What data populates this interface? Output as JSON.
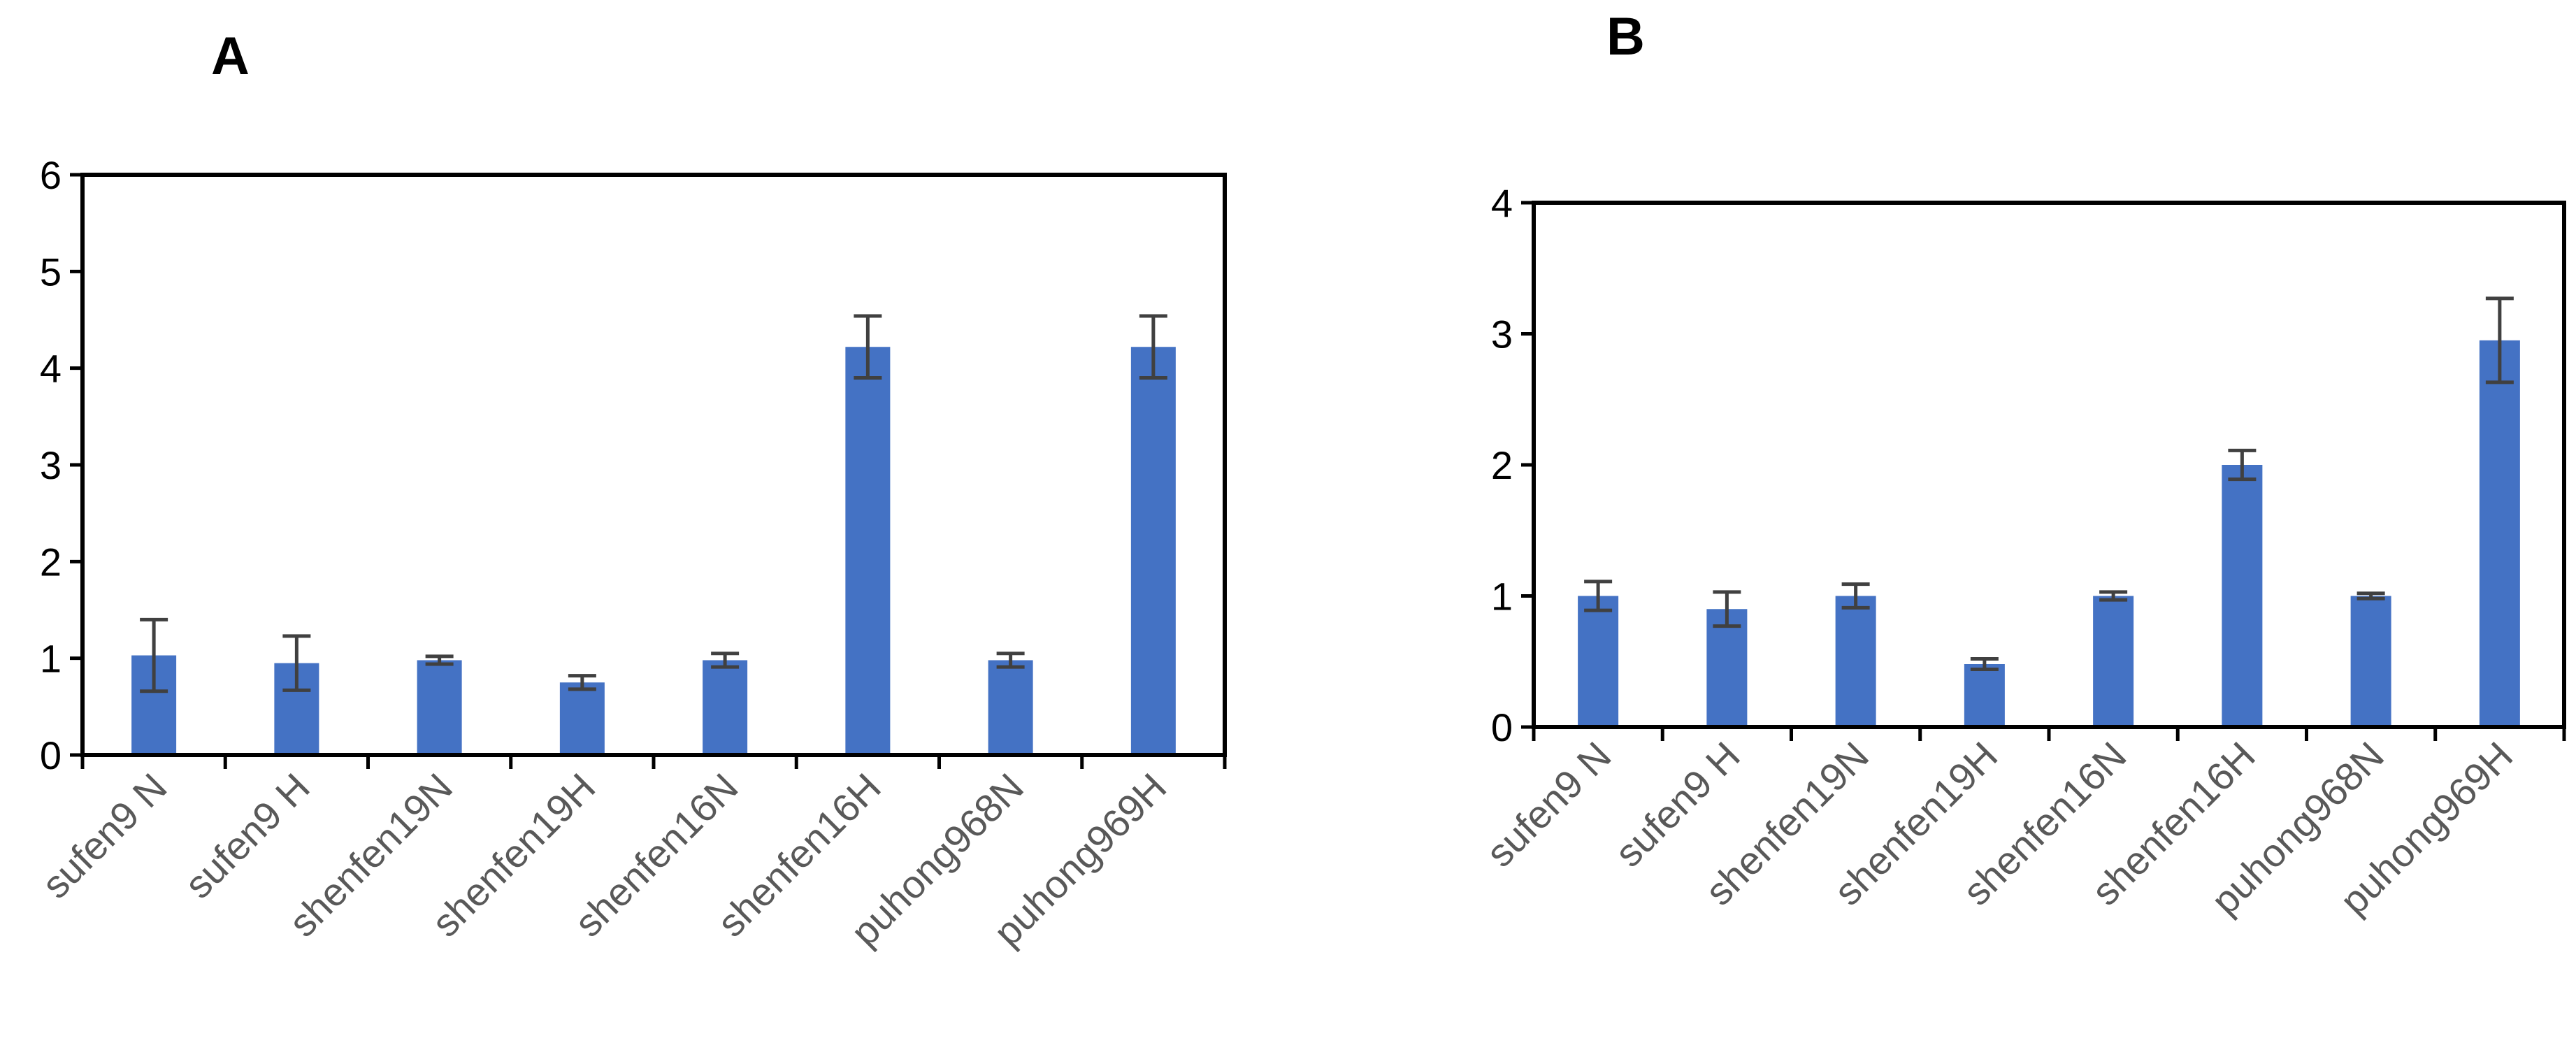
{
  "colors": {
    "bar": "#4472C4",
    "axis": "#000000",
    "error_bar": "#404040",
    "tick_label": "#595959"
  },
  "chart_data": [
    {
      "panel": "A",
      "type": "bar",
      "title": "",
      "xlabel": "",
      "ylabel": "",
      "ylim": [
        0,
        6
      ],
      "yticks": [
        0,
        1,
        2,
        3,
        4,
        5,
        6
      ],
      "grid": false,
      "categories": [
        "sufen9 N",
        "sufen9 H",
        "shenfen19N",
        "shenfen19H",
        "shenfen16N",
        "shenfen16H",
        "puhong968N",
        "puhong969H"
      ],
      "values": [
        1.03,
        0.95,
        0.98,
        0.75,
        0.98,
        4.22,
        0.98,
        4.22
      ],
      "errors": [
        0.37,
        0.28,
        0.04,
        0.07,
        0.07,
        0.32,
        0.07,
        0.32
      ]
    },
    {
      "panel": "B",
      "type": "bar",
      "title": "",
      "xlabel": "",
      "ylabel": "",
      "ylim": [
        0,
        4
      ],
      "yticks": [
        0,
        1,
        2,
        3,
        4
      ],
      "grid": false,
      "categories": [
        "sufen9 N",
        "sufen9 H",
        "shenfen19N",
        "shenfen19H",
        "shenfen16N",
        "shenfen16H",
        "puhong968N",
        "puhong969H"
      ],
      "values": [
        1.0,
        0.9,
        1.0,
        0.48,
        1.0,
        2.0,
        1.0,
        2.95
      ],
      "errors": [
        0.11,
        0.13,
        0.09,
        0.04,
        0.03,
        0.11,
        0.02,
        0.32
      ]
    }
  ]
}
